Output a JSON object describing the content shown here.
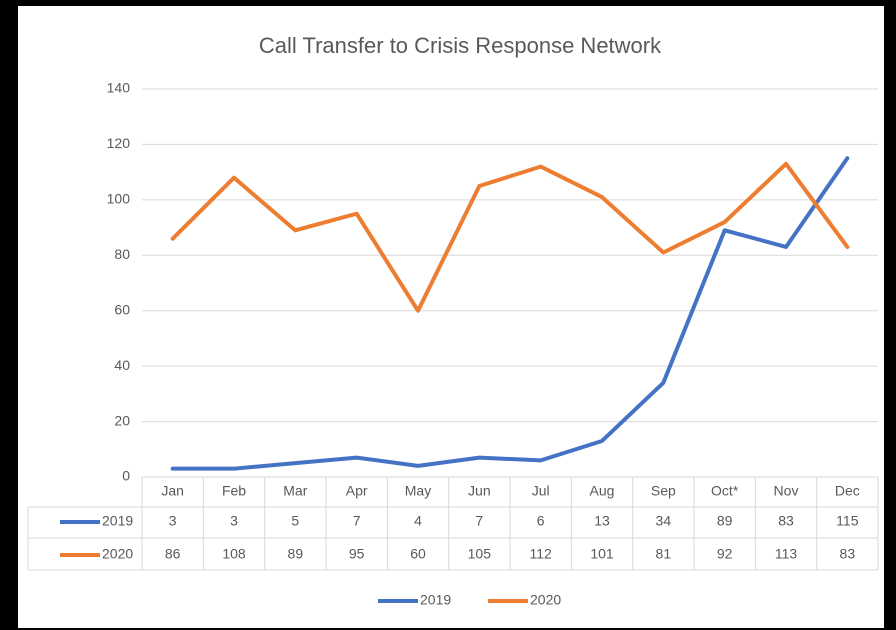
{
  "chart_data": {
    "type": "line",
    "title": "Call Transfer to Crisis Response Network",
    "categories": [
      "Jan",
      "Feb",
      "Mar",
      "Apr",
      "May",
      "Jun",
      "Jul",
      "Aug",
      "Sep",
      "Oct*",
      "Nov",
      "Dec"
    ],
    "series": [
      {
        "name": "2019",
        "color": "#4472c4",
        "values": [
          3,
          3,
          5,
          7,
          4,
          7,
          6,
          13,
          34,
          89,
          83,
          115
        ]
      },
      {
        "name": "2020",
        "color": "#ed7d31",
        "values": [
          86,
          108,
          89,
          95,
          60,
          105,
          112,
          101,
          81,
          92,
          113,
          83
        ]
      }
    ],
    "ylim": [
      0,
      140
    ],
    "yticks": [
      0,
      20,
      40,
      60,
      80,
      100,
      120,
      140
    ],
    "grid": true,
    "legend": "bottom"
  }
}
